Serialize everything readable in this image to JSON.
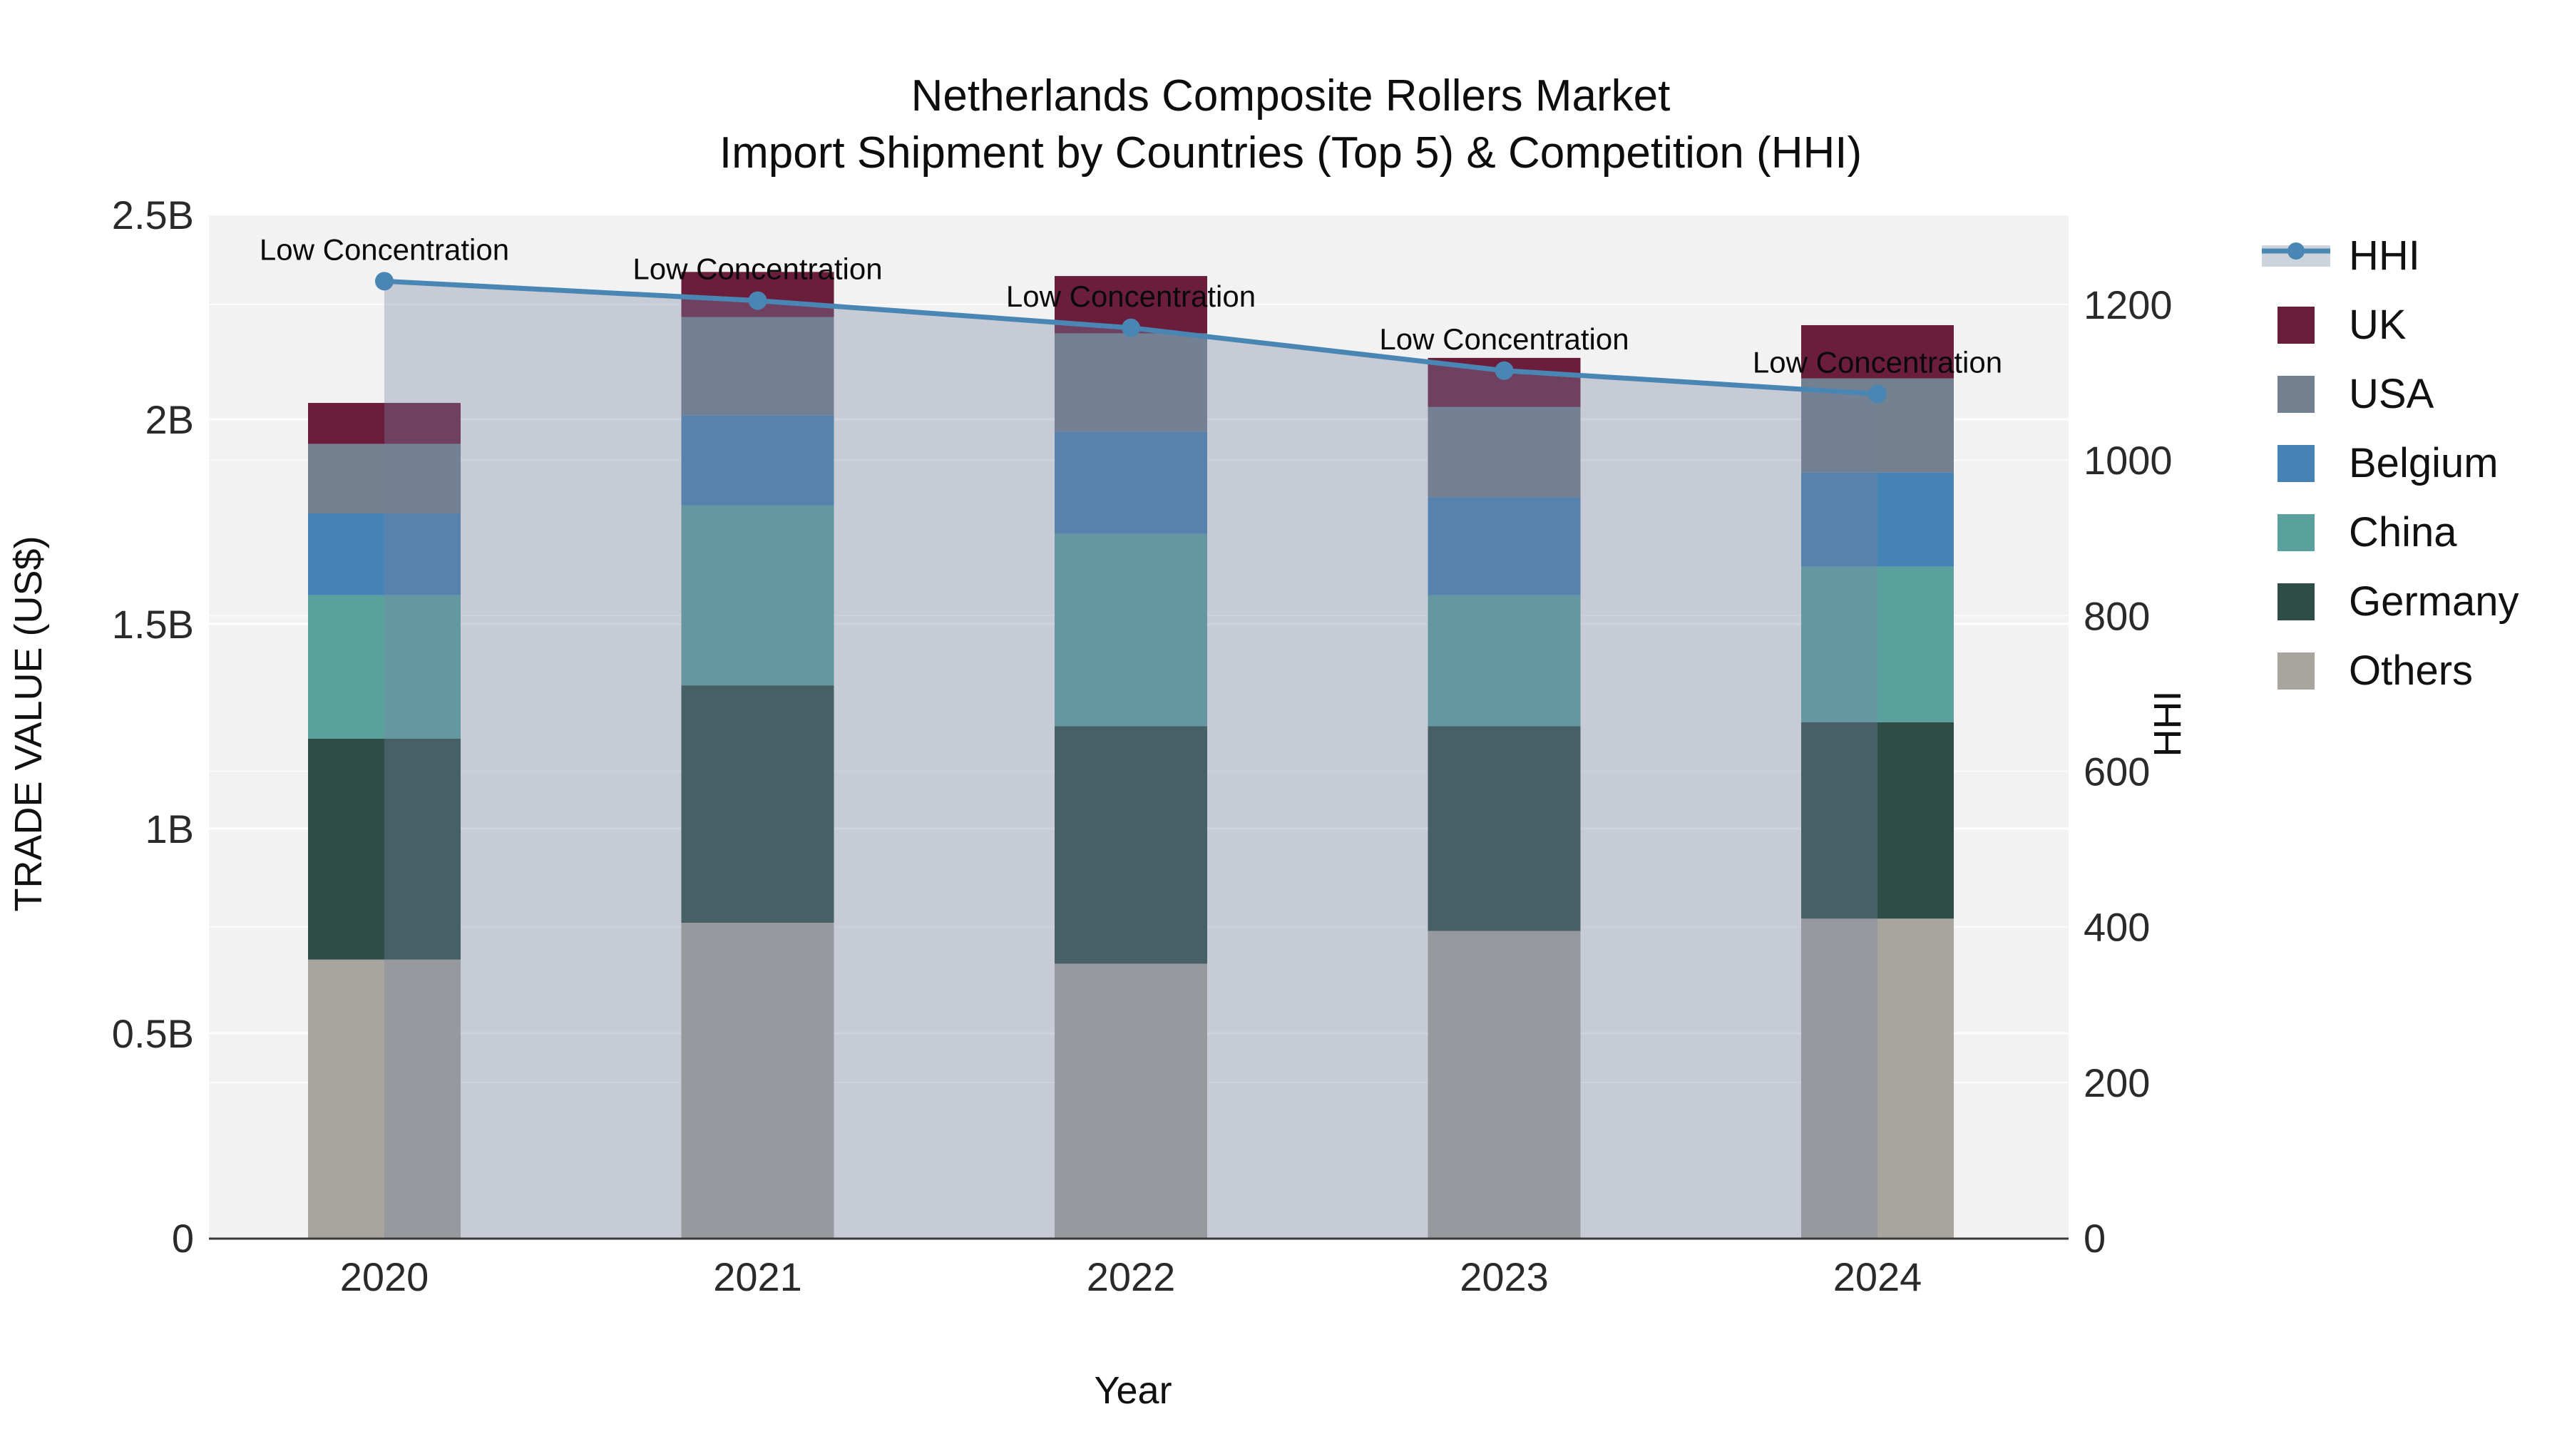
{
  "title": {
    "line1": "Netherlands Composite Rollers Market",
    "line2": "Import Shipment by Countries (Top 5) & Competition (HHI)"
  },
  "legend": {
    "items": [
      {
        "label": "HHI",
        "type": "line",
        "color": "#4a86b4",
        "band": "#cdd3dd"
      },
      {
        "label": "UK",
        "type": "square",
        "color": "#6b1d3c"
      },
      {
        "label": "USA",
        "type": "square",
        "color": "#72808f"
      },
      {
        "label": "Belgium",
        "type": "square",
        "color": "#4682b4"
      },
      {
        "label": "China",
        "type": "square",
        "color": "#5aa19e"
      },
      {
        "label": "Germany",
        "type": "square",
        "color": "#2d4d46"
      },
      {
        "label": "Others",
        "type": "square",
        "color": "#a8a59f"
      }
    ]
  },
  "chart_data": {
    "type": "bar",
    "subtype": "stacked-bars-with-line-area",
    "title": "Netherlands Composite Rollers Market Import Shipment by Countries (Top 5) & Competition (HHI)",
    "categories": [
      "2020",
      "2021",
      "2022",
      "2023",
      "2024"
    ],
    "xlabel": "Year",
    "ylabel_left": "TRADE VALUE (US$)",
    "ylabel_right": "HHI",
    "y_left_unit": "billions USD",
    "y_left_range": [
      0,
      2.5
    ],
    "y_left_tick_labels": [
      "0",
      "0.5B",
      "1B",
      "1.5B",
      "2B",
      "2.5B"
    ],
    "y_right_range": [
      0,
      1316
    ],
    "y_right_ticks": [
      0,
      200,
      400,
      600,
      800,
      1000,
      1200
    ],
    "grid": true,
    "legend_position": "right",
    "series": [
      {
        "name": "Others",
        "color": "#a8a59f",
        "values": [
          0.68,
          0.77,
          0.67,
          0.75,
          0.78
        ]
      },
      {
        "name": "Germany",
        "color": "#2d4d46",
        "values": [
          0.54,
          0.58,
          0.58,
          0.5,
          0.48
        ]
      },
      {
        "name": "China",
        "color": "#5aa19e",
        "values": [
          0.35,
          0.44,
          0.47,
          0.32,
          0.38
        ]
      },
      {
        "name": "Belgium",
        "color": "#4682b4",
        "values": [
          0.2,
          0.22,
          0.25,
          0.24,
          0.23
        ]
      },
      {
        "name": "USA",
        "color": "#72808f",
        "values": [
          0.17,
          0.24,
          0.24,
          0.22,
          0.23
        ]
      },
      {
        "name": "UK",
        "color": "#6b1d3c",
        "values": [
          0.1,
          0.11,
          0.14,
          0.12,
          0.13
        ]
      }
    ],
    "stack_totals": [
      2.04,
      2.36,
      2.35,
      2.15,
      2.23
    ],
    "line_series": {
      "name": "HHI",
      "axis": "right",
      "color": "#4a86b4",
      "area_fill": "rgba(120,133,160,0.35)",
      "values": [
        1230,
        1205,
        1170,
        1115,
        1085
      ],
      "point_annotation": "Low Concentration"
    },
    "annotation_label": "Low Concentration",
    "plot_background": "#f2f2f2",
    "gridline_color": "#ffffff",
    "axis_line_color": "#3a3a3a",
    "tick_text_color": "#2a2a2a"
  }
}
